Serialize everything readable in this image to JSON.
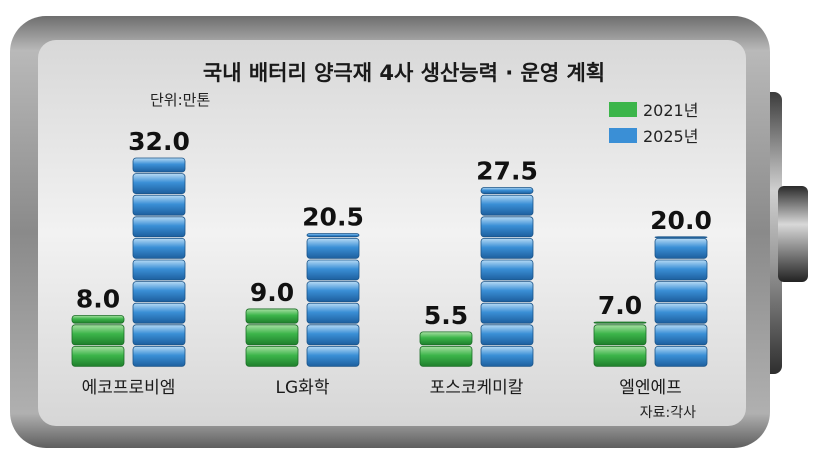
{
  "colors": {
    "y2021": "#3cb54a",
    "y2025": "#3a8fd6",
    "battery_body": "#8f8f8f",
    "panel": "#e4e4e4"
  },
  "chart_data": {
    "type": "bar",
    "title": "국내 배터리 양극재 4사 생산능력 · 운영 계획",
    "unit": "단위:만톤",
    "categories": [
      "에코프로비엠",
      "LG화학",
      "포스코케미칼",
      "엘엔에프"
    ],
    "series": [
      {
        "name": "2021년",
        "values": [
          8.0,
          9.0,
          5.5,
          7.0
        ],
        "value_labels": [
          "8.0",
          "9.0",
          "5.5",
          "7.0"
        ]
      },
      {
        "name": "2025년",
        "values": [
          32.0,
          20.5,
          27.5,
          20.0
        ],
        "value_labels": [
          "32.0",
          "20.5",
          "27.5",
          "20.0"
        ]
      }
    ],
    "ylim": [
      0,
      32
    ],
    "legend": "top-right",
    "grid": false,
    "source": "자료:각사"
  }
}
